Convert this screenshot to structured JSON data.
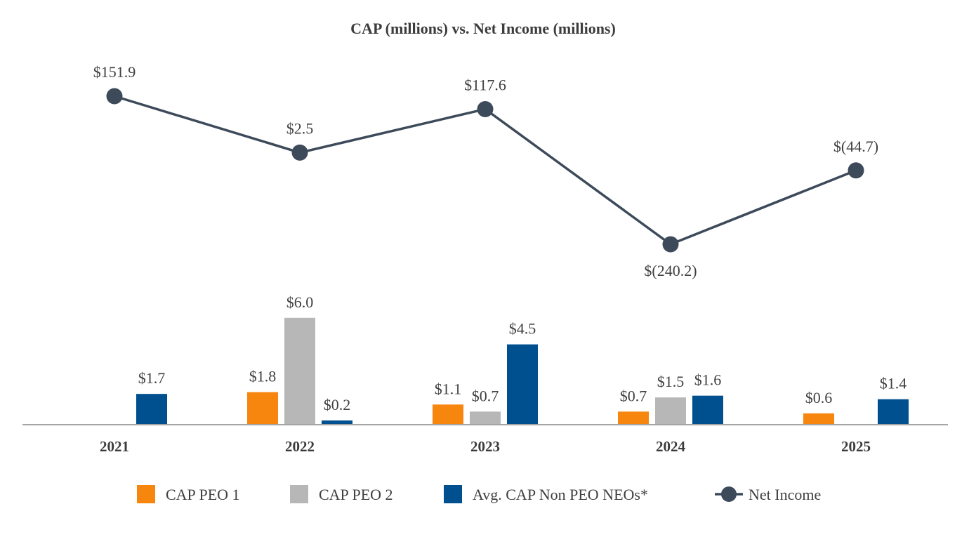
{
  "chart_data": {
    "type": "bar",
    "title": "CAP (millions) vs. Net Income (millions)",
    "categories": [
      "2021",
      "2022",
      "2023",
      "2024",
      "2025"
    ],
    "series": [
      {
        "name": "CAP PEO 1",
        "kind": "bar",
        "color": "#F7860E",
        "values": [
          null,
          1.8,
          1.1,
          0.7,
          0.6
        ],
        "labels": [
          "",
          "$1.8",
          "$1.1",
          "$0.7",
          "$0.6"
        ]
      },
      {
        "name": "CAP PEO 2",
        "kind": "bar",
        "color": "#B7B7B7",
        "values": [
          null,
          6.0,
          0.7,
          1.5,
          null
        ],
        "labels": [
          "",
          "$6.0",
          "$0.7",
          "$1.5",
          ""
        ]
      },
      {
        "name": "Avg. CAP Non PEO NEOs*",
        "kind": "bar",
        "color": "#00508F",
        "values": [
          1.7,
          0.2,
          4.5,
          1.6,
          1.4
        ],
        "labels": [
          "$1.7",
          "$0.2",
          "$4.5",
          "$1.6",
          "$1.4"
        ]
      },
      {
        "name": "Net Income",
        "kind": "line",
        "color": "#3D4A5A",
        "values": [
          151.9,
          2.5,
          117.6,
          -240.2,
          -44.7
        ],
        "labels": [
          "$151.9",
          "$2.5",
          "$117.6",
          "$(240.2)",
          "$(44.7)"
        ]
      }
    ],
    "legend_position": "bottom",
    "grid": false
  }
}
